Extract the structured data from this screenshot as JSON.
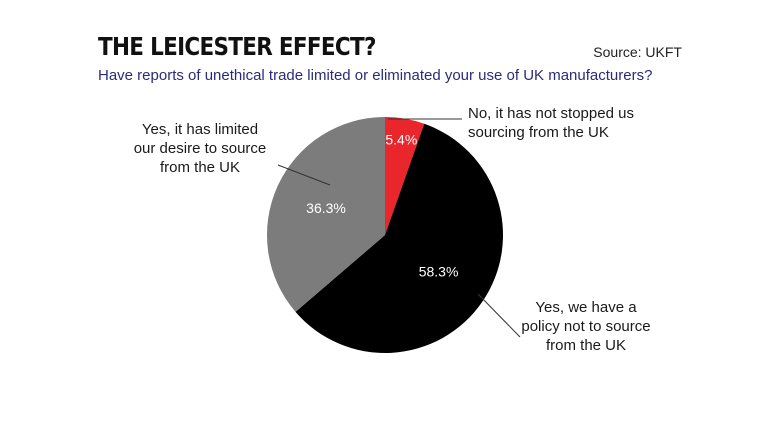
{
  "title": "THE LEICESTER EFFECT?",
  "source": "Source: UKFT",
  "subtitle": "Have reports of unethical trade limited or eliminated your use of UK manufacturers?",
  "colors": {
    "title": "#111111",
    "subtitle": "#2a2c7a",
    "no_stopped": "#e8262b",
    "policy": "#000000",
    "limited": "#7c7c7c"
  },
  "chart_data": {
    "type": "pie",
    "title": "THE LEICESTER EFFECT?",
    "subtitle": "Have reports of unethical trade limited or eliminated your use of UK manufacturers?",
    "slices": [
      {
        "key": "no_stopped",
        "label_lines": [
          "No, it has not stopped us",
          "sourcing from the UK"
        ],
        "value": 5.4,
        "value_label": "5.4%",
        "color": "#e8262b",
        "value_color": "#ffffff"
      },
      {
        "key": "policy",
        "label_lines": [
          "Yes, we have a",
          "policy not to source",
          "from the UK"
        ],
        "value": 58.3,
        "value_label": "58.3%",
        "color": "#000000",
        "value_color": "#ffffff"
      },
      {
        "key": "limited",
        "label_lines": [
          "Yes, it has limited",
          "our desire to source",
          "from the UK"
        ],
        "value": 36.3,
        "value_label": "36.3%",
        "color": "#7c7c7c",
        "value_color": "#ffffff"
      }
    ],
    "start_angle_deg": 0,
    "direction": "clockwise",
    "legend": "none"
  }
}
